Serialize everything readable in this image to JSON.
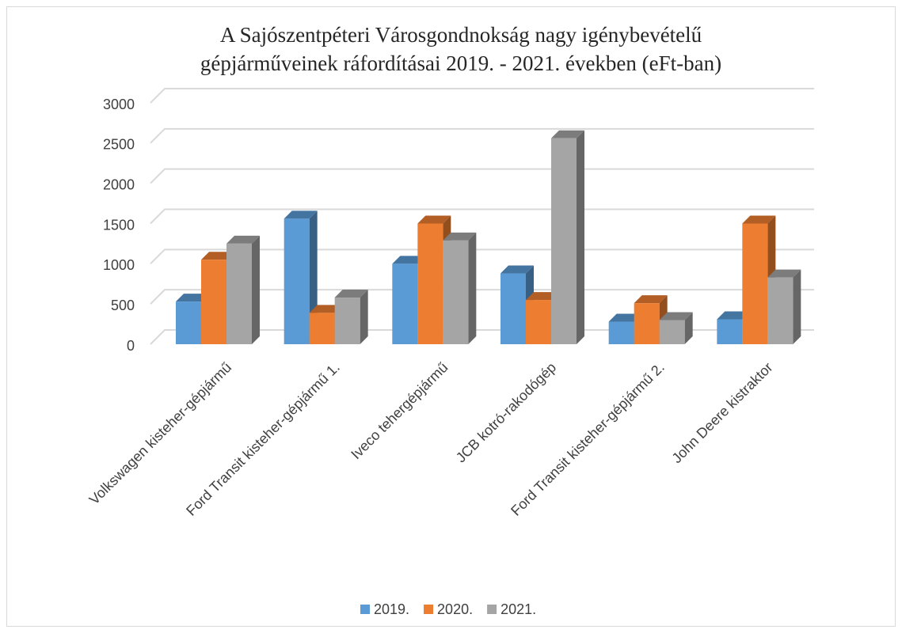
{
  "chart_data": {
    "type": "bar3d",
    "title": [
      "A Sajószentpéteri Városgondnokság nagy igénybevételű",
      "gépjárműveinek ráfordításai 2019. - 2021. években (eFt-ban)"
    ],
    "categories": [
      "Volkswagen kisteher-gépjármű",
      "Ford Transit kisteher-gépjármű 1.",
      "Iveco tehergépjármű",
      "JCB kotró-rakodógép",
      "Ford Transit kisteher-gépjármű 2.",
      "John Deere kistraktor"
    ],
    "series": [
      {
        "name": "2019.",
        "color": "#5b9bd5",
        "values": [
          530,
          1560,
          1000,
          880,
          280,
          310
        ]
      },
      {
        "name": "2020.",
        "color": "#ed7d31",
        "values": [
          1050,
          390,
          1500,
          550,
          510,
          1500
        ]
      },
      {
        "name": "2021.",
        "color": "#a5a5a5",
        "values": [
          1250,
          580,
          1290,
          2560,
          300,
          830
        ]
      }
    ],
    "ylim": [
      0,
      3000
    ],
    "yticks": [
      0,
      500,
      1000,
      1500,
      2000,
      2500,
      3000
    ],
    "grid": true,
    "legend": "bottom"
  }
}
